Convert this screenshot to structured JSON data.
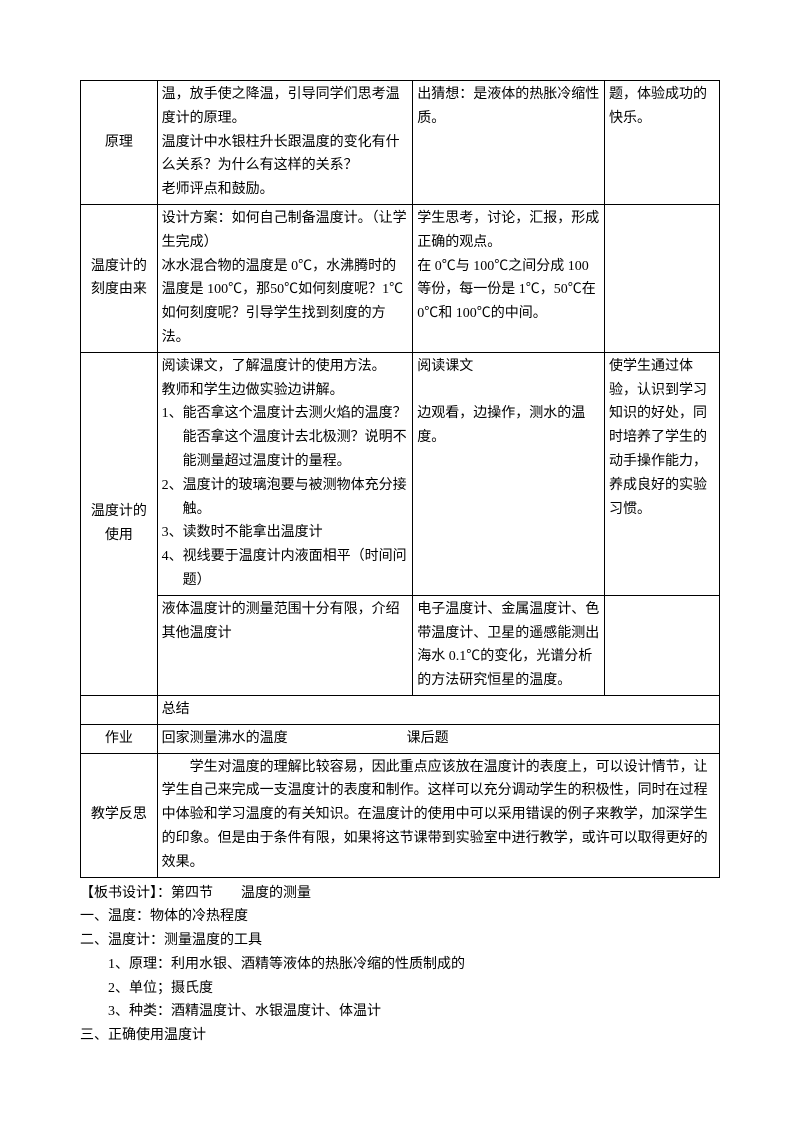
{
  "rows": {
    "r1": {
      "c1": "原理",
      "c2": "温，放手使之降温，引导同学们思考温度计的原理。\n温度计中水银柱升长跟温度的变化有什么关系？为什么有这样的关系？\n老师评点和鼓励。",
      "c3": "出猜想：是液体的热胀冷缩性质。",
      "c4": "题，体验成功的快乐。"
    },
    "r2": {
      "c1": "温度计的刻度由来",
      "c2": "设计方案：如何自己制备温度计。（让学生完成）\n冰水混合物的温度是 0℃，水沸腾时的温度是 100℃，那50℃如何刻度呢？1℃如何刻度呢？引导学生找到刻度的方法。",
      "c3": "学生思考，讨论，汇报，形成正确的观点。\n在 0℃与 100℃之间分成 100等份，每一份是 1℃，50℃在 0℃和 100℃的中间。",
      "c4": ""
    },
    "r3": {
      "c1": "温度计的使用",
      "c2_intro": "阅读课文，了解温度计的使用方法。\n教师和学生边做实验边讲解。",
      "c2_li1": "1、能否拿这个温度计去测火焰的温度？能否拿这个温度计去北极测？说明不能测量超过温度计的量程。",
      "c2_li2": "2、温度计的玻璃泡要与被测物体充分接触。",
      "c2_li3": "3、读数时不能拿出温度计",
      "c2_li4": "4、视线要于温度计内液面相平（时间问题）",
      "c3": "阅读课文\n\n边观看，边操作，测水的温度。",
      "c4": "使学生通过体验，认识到学习知识的好处，同时培养了学生的动手操作能力，养成良好的实验习惯。"
    },
    "r4": {
      "c2": "液体温度计的测量范围十分有限，介绍其他温度计",
      "c3": "电子温度计、金属温度计、色带温度计、卫星的遥感能测出海水 0.1℃的变化，光谱分析的方法研究恒星的温度。",
      "c4": ""
    },
    "r5": {
      "c2": "总结"
    },
    "r6": {
      "c1": "作业",
      "c2a": "回家测量沸水的温度",
      "c2b": "课后题"
    },
    "r7": {
      "c1": "教学反思",
      "c2": "学生对温度的理解比较容易，因此重点应该放在温度计的表度上，可以设计情节，让学生自己来完成一支温度计的表度和制作。这样可以充分调动学生的积极性，同时在过程中体验和学习温度的有关知识。在温度计的使用中可以采用错误的例子来教学，加深学生的印象。但是由于条件有限，如果将这节课带到实验室中进行教学，或许可以取得更好的效果。"
    }
  },
  "board": {
    "title": "【板书设计】：第四节　　温度的测量",
    "l1": "一、温度：物体的冷热程度",
    "l2": "二、温度计：测量温度的工具",
    "l2_1": "1、原理：利用水银、酒精等液体的热胀冷缩的性质制成的",
    "l2_2": "2、单位；摄氏度",
    "l2_3": "3、种类：酒精温度计、水银温度计、体温计",
    "l3": "三、正确使用温度计"
  }
}
